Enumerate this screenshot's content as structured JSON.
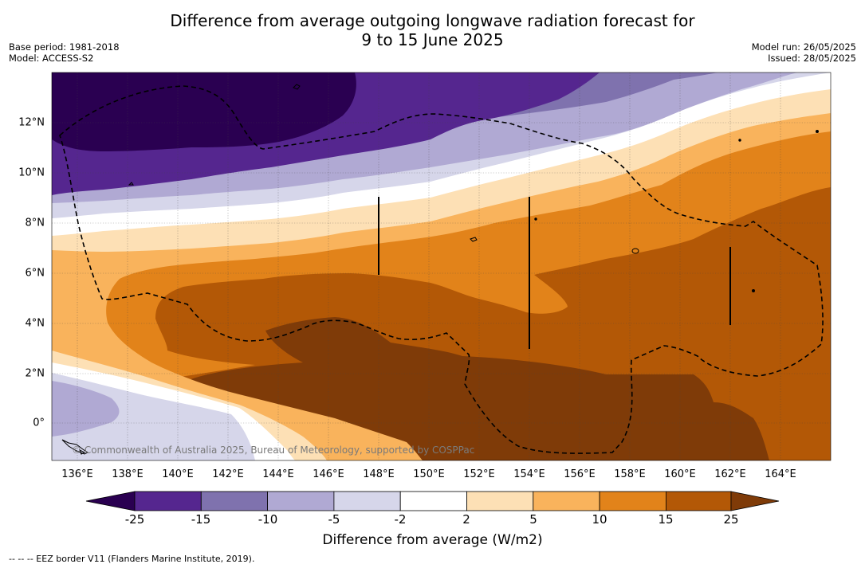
{
  "title_line1": "Difference from average outgoing longwave radiation forecast for",
  "title_line2": "9 to 15 June 2025",
  "base_period": "Base period: 1981-2018",
  "model": "Model: ACCESS-S2",
  "model_run": "Model run: 26/05/2025",
  "issued": "Issued: 28/05/2025",
  "copyright": "© Commonwealth of Australia 2025, Bureau of Meteorology, supported by COSPPac",
  "x_ticks": [
    "136°E",
    "138°E",
    "140°E",
    "142°E",
    "144°E",
    "146°E",
    "148°E",
    "150°E",
    "152°E",
    "154°E",
    "156°E",
    "158°E",
    "160°E",
    "162°E",
    "164°E"
  ],
  "y_ticks": [
    "12°N",
    "10°N",
    "8°N",
    "6°N",
    "4°N",
    "2°N",
    "0°"
  ],
  "colorbar": {
    "label": "Difference from average (W/m2)",
    "ticks": [
      "-25",
      "-15",
      "-10",
      "-5",
      "-2",
      "2",
      "5",
      "10",
      "15",
      "25"
    ],
    "colors": [
      "#2a0051",
      "#55268f",
      "#7f72ae",
      "#b0a9d3",
      "#d6d6ea",
      "#ffffff",
      "#fde0b5",
      "#f9b35c",
      "#e2831a",
      "#b35806",
      "#7f3b08"
    ]
  },
  "footnote": "--  --  -- EEZ border V11 (Flanders Marine Institute, 2019)."
}
